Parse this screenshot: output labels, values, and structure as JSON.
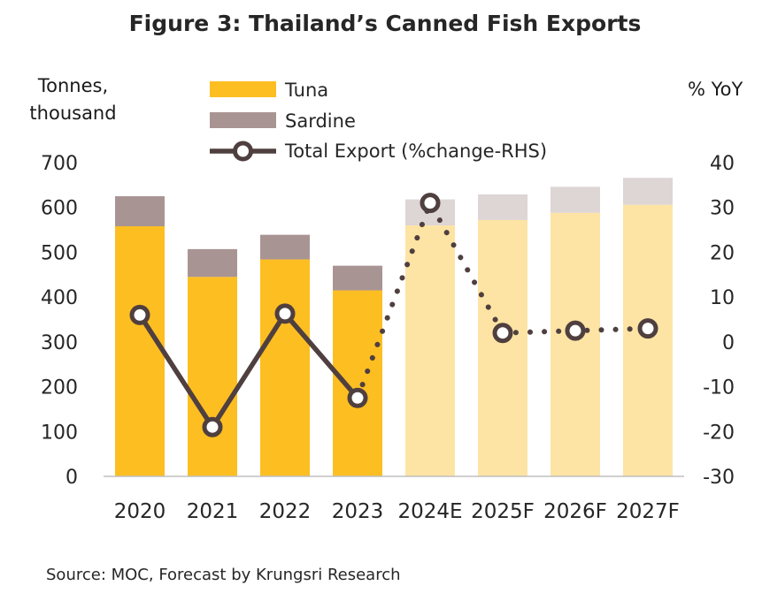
{
  "title": "Figure 3: Thailand’s Canned Fish Exports",
  "left_axis_unit_line1": "Tonnes,",
  "left_axis_unit_line2": "thousand",
  "right_axis_unit": "% YoY",
  "source": "Source: MOC, Forecast by Krungsri Research",
  "colors": {
    "tuna_actual": "#FDBE22",
    "sardine_actual": "#A99494",
    "tuna_forecast": "#FDE4A4",
    "sardine_forecast": "#DED5D5",
    "line": "#4F3F3F",
    "axis": "#262626"
  },
  "chart_data": {
    "type": "bar",
    "stacked": true,
    "categories": [
      "2020",
      "2021",
      "2022",
      "2023",
      "2024E",
      "2025F",
      "2026F",
      "2027F"
    ],
    "forecast_from_index": 4,
    "series": [
      {
        "name": "Tuna",
        "axis": "left",
        "values": [
          558,
          445,
          484,
          415,
          560,
          572,
          588,
          606
        ]
      },
      {
        "name": "Sardine",
        "axis": "left",
        "values": [
          67,
          62,
          55,
          55,
          58,
          57,
          58,
          60
        ]
      },
      {
        "name": "Total Export (%change-RHS)",
        "axis": "right",
        "type": "line",
        "values": [
          6,
          -19,
          6.3,
          -12.5,
          31,
          2,
          2.5,
          3
        ]
      }
    ],
    "ylim_left": [
      0,
      700
    ],
    "yticks_left": [
      0,
      100,
      200,
      300,
      400,
      500,
      600,
      700
    ],
    "ylim_right": [
      -30,
      40
    ],
    "yticks_right": [
      -30,
      -20,
      -10,
      0,
      10,
      20,
      30,
      40
    ],
    "legend_position": "top-center",
    "grid": false
  }
}
